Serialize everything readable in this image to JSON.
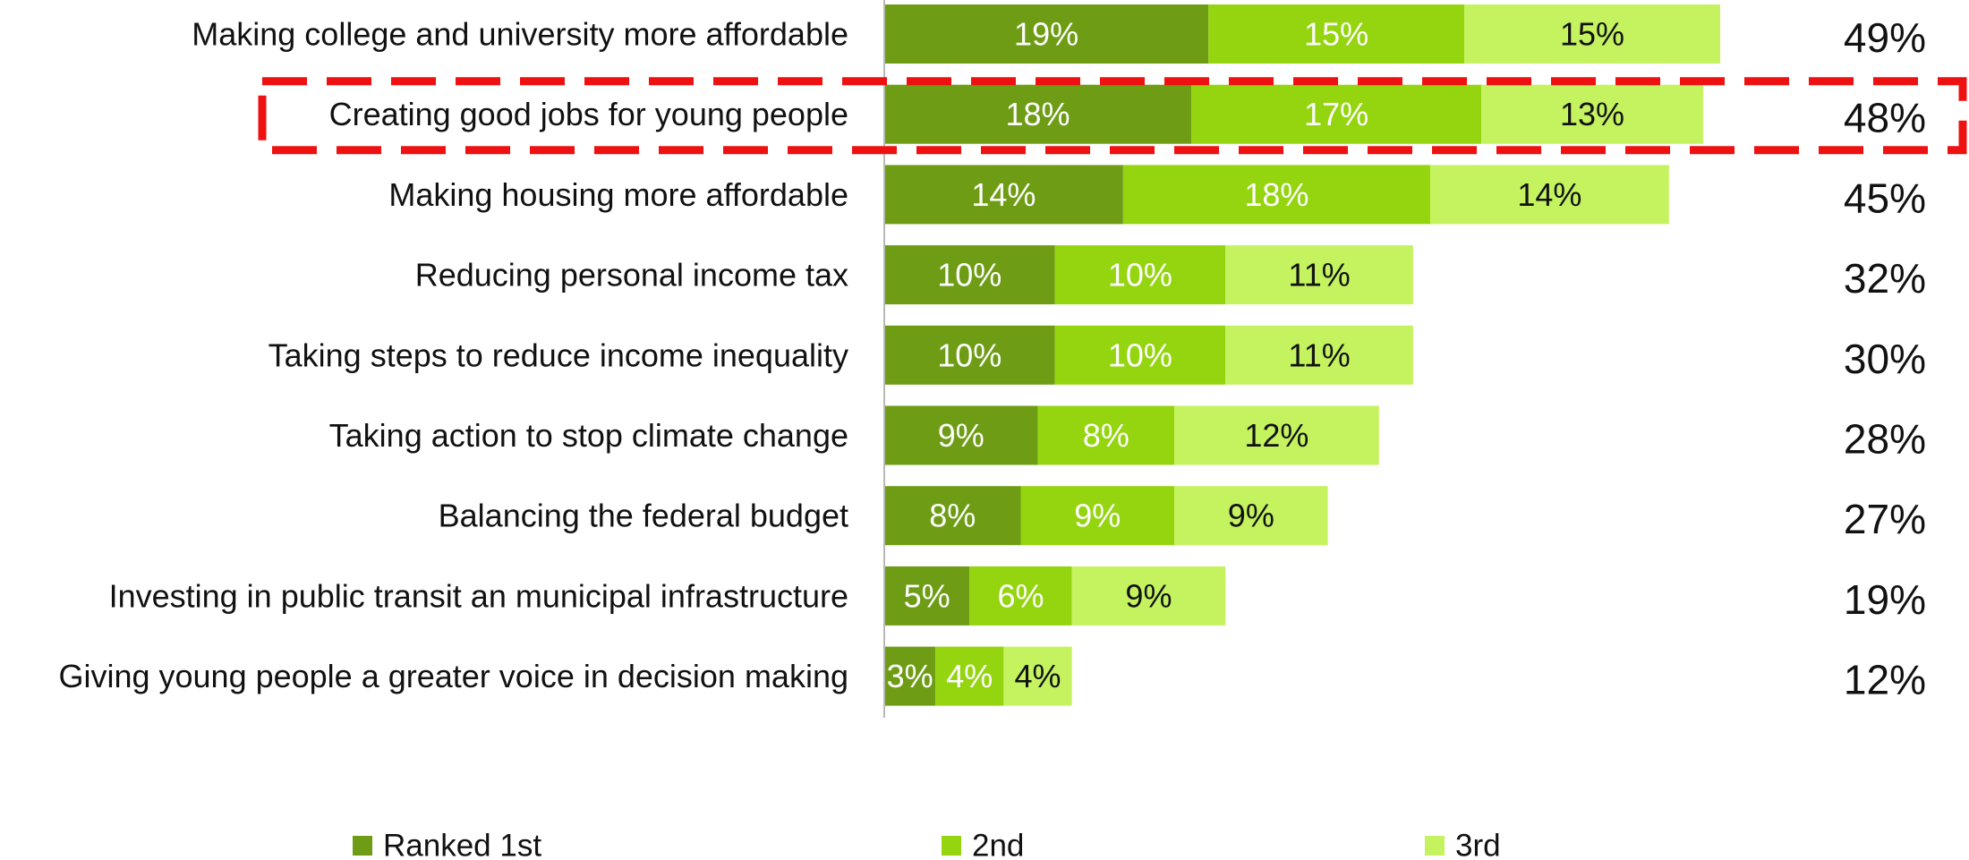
{
  "chart_data": {
    "type": "bar",
    "orientation": "horizontal",
    "stacked": true,
    "categories": [
      "Making college and university more affordable",
      "Creating good jobs for young people",
      "Making housing more affordable",
      "Reducing personal income tax",
      "Taking steps to reduce income inequality",
      "Taking action to stop climate change",
      "Balancing the federal budget",
      "Investing in public transit an municipal infrastructure",
      "Giving young people a greater voice in decision making"
    ],
    "series": [
      {
        "name": "Ranked 1st",
        "color": "#6e9d15",
        "label_color": "#ffffff",
        "values": [
          19,
          18,
          14,
          10,
          10,
          9,
          8,
          5,
          3
        ],
        "labels": [
          "19%",
          "18%",
          "14%",
          "10%",
          "10%",
          "9%",
          "8%",
          "5%",
          "3%"
        ]
      },
      {
        "name": "2nd",
        "color": "#94d50f",
        "label_color": "#ffffff",
        "values": [
          15,
          17,
          18,
          10,
          10,
          8,
          9,
          6,
          4
        ],
        "labels": [
          "15%",
          "17%",
          "18%",
          "10%",
          "10%",
          "8%",
          "9%",
          "6%",
          "4%"
        ]
      },
      {
        "name": "3rd",
        "color": "#c5f35f",
        "label_color": "#111111",
        "values": [
          15,
          13,
          14,
          11,
          11,
          12,
          9,
          9,
          4
        ],
        "labels": [
          "15%",
          "13%",
          "14%",
          "11%",
          "11%",
          "12%",
          "9%",
          "9%",
          "4%"
        ]
      }
    ],
    "totals": [
      "49%",
      "48%",
      "45%",
      "32%",
      "30%",
      "28%",
      "27%",
      "19%",
      "12%"
    ],
    "xlim": [
      0,
      49
    ],
    "legend": "bottom",
    "grid": false,
    "highlighted_category": "Creating good jobs for young people",
    "highlight_color": "#ee1111"
  }
}
